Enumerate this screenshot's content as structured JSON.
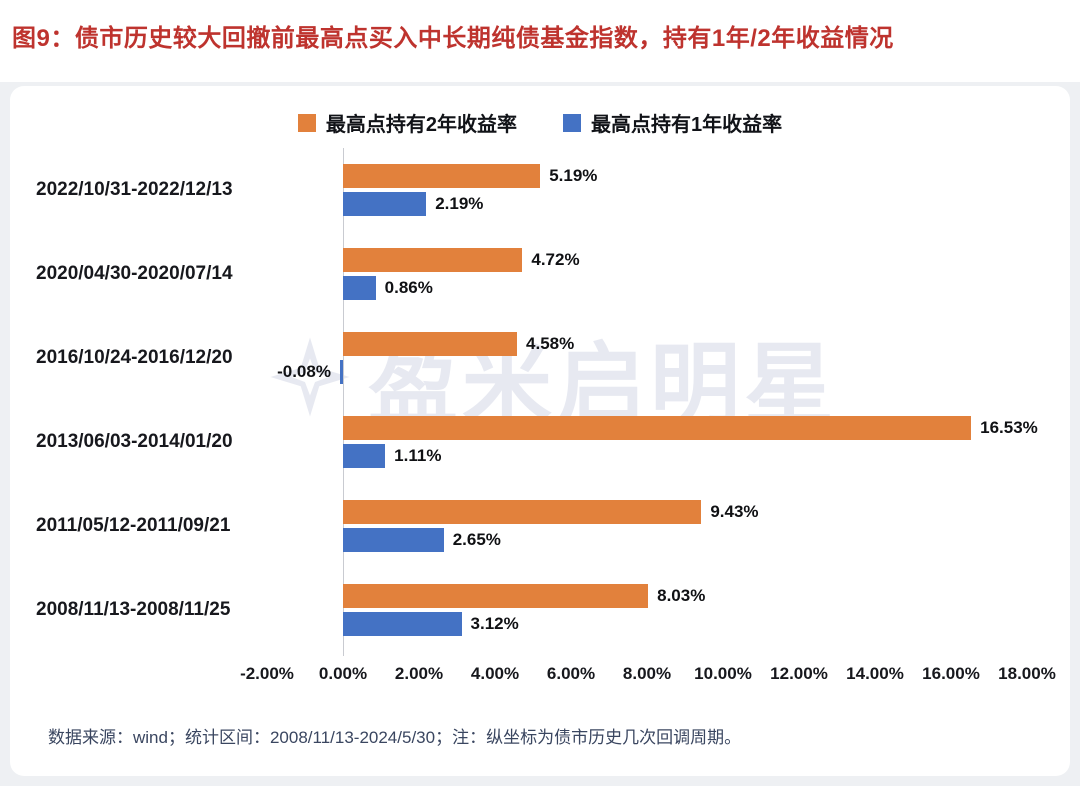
{
  "page": {
    "title": "图9：债市历史较大回撤前最高点买入中长期纯债基金指数，持有1年/2年收益情况",
    "footer": "数据来源：wind；统计区间：2008/11/13-2024/5/30；注：纵坐标为债市历史几次回调周期。"
  },
  "watermark": {
    "text": "盈米启明星",
    "logo": "diamond-star"
  },
  "colors": {
    "title_red": "#BE332E",
    "orange": "#E2813C",
    "blue": "#4472C4",
    "page_bg": "#EEF0F3",
    "card_bg": "#FFFFFF",
    "axis_line": "#C9CBD1",
    "text_dark": "#16181D",
    "footer_text": "#3A4660",
    "watermark": "rgba(174,182,207,0.30)"
  },
  "chart_data": {
    "type": "bar",
    "orientation": "horizontal",
    "title": "",
    "categories": [
      "2022/10/31-2022/12/13",
      "2020/04/30-2020/07/14",
      "2016/10/24-2016/12/20",
      "2013/06/03-2014/01/20",
      "2011/05/12-2011/09/21",
      "2008/11/13-2008/11/25"
    ],
    "series": [
      {
        "name": "最高点持有2年收益率",
        "color_key": "orange",
        "values": [
          5.19,
          4.72,
          4.58,
          16.53,
          9.43,
          8.03
        ],
        "labels": [
          "5.19%",
          "4.72%",
          "4.58%",
          "16.53%",
          "9.43%",
          "8.03%"
        ]
      },
      {
        "name": "最高点持有1年收益率",
        "color_key": "blue",
        "values": [
          2.19,
          0.86,
          -0.08,
          1.11,
          2.65,
          3.12
        ],
        "labels": [
          "2.19%",
          "0.86%",
          "-0.08%",
          "1.11%",
          "2.65%",
          "3.12%"
        ]
      }
    ],
    "x_axis": {
      "tick_labels": [
        "-2.00%",
        "0.00%",
        "2.00%",
        "4.00%",
        "6.00%",
        "8.00%",
        "10.00%",
        "12.00%",
        "14.00%",
        "16.00%",
        "18.00%"
      ],
      "tick_values": [
        -2,
        0,
        2,
        4,
        6,
        8,
        10,
        12,
        14,
        16,
        18
      ],
      "min": -2,
      "max": 18
    },
    "legend_position": "top",
    "grid": false
  }
}
